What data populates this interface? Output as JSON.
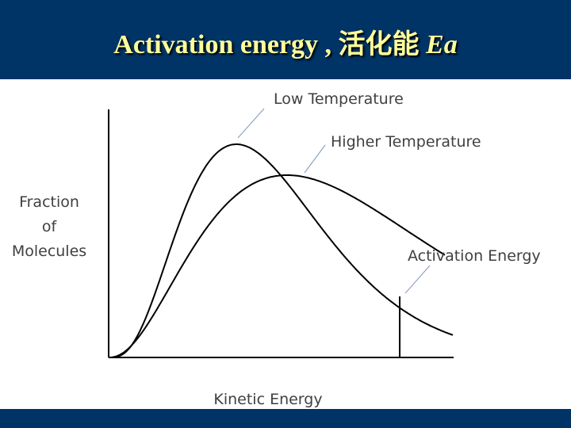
{
  "slide": {
    "title_prefix": "Activation energy , 活化能 ",
    "title_symbol": "Ea",
    "header_color": "#003366",
    "title_color": "#ffff99"
  },
  "chart_data": {
    "type": "line",
    "title": "",
    "xlabel": "Kinetic Energy",
    "ylabel_lines": [
      "Fraction",
      "of",
      "Molecules"
    ],
    "series": [
      {
        "name": "Low Temperature",
        "color": "#000000"
      },
      {
        "name": "Higher Temperature",
        "color": "#000000"
      }
    ],
    "annotations": [
      {
        "text": "Low Temperature",
        "target": "peak of Low Temperature curve"
      },
      {
        "text": "Higher Temperature",
        "target": "peak of Higher Temperature curve"
      },
      {
        "text": "Activation Energy",
        "target": "vertical line on Kinetic Energy axis"
      }
    ],
    "activation_energy_marker": true,
    "grid": false,
    "ticks": false
  }
}
